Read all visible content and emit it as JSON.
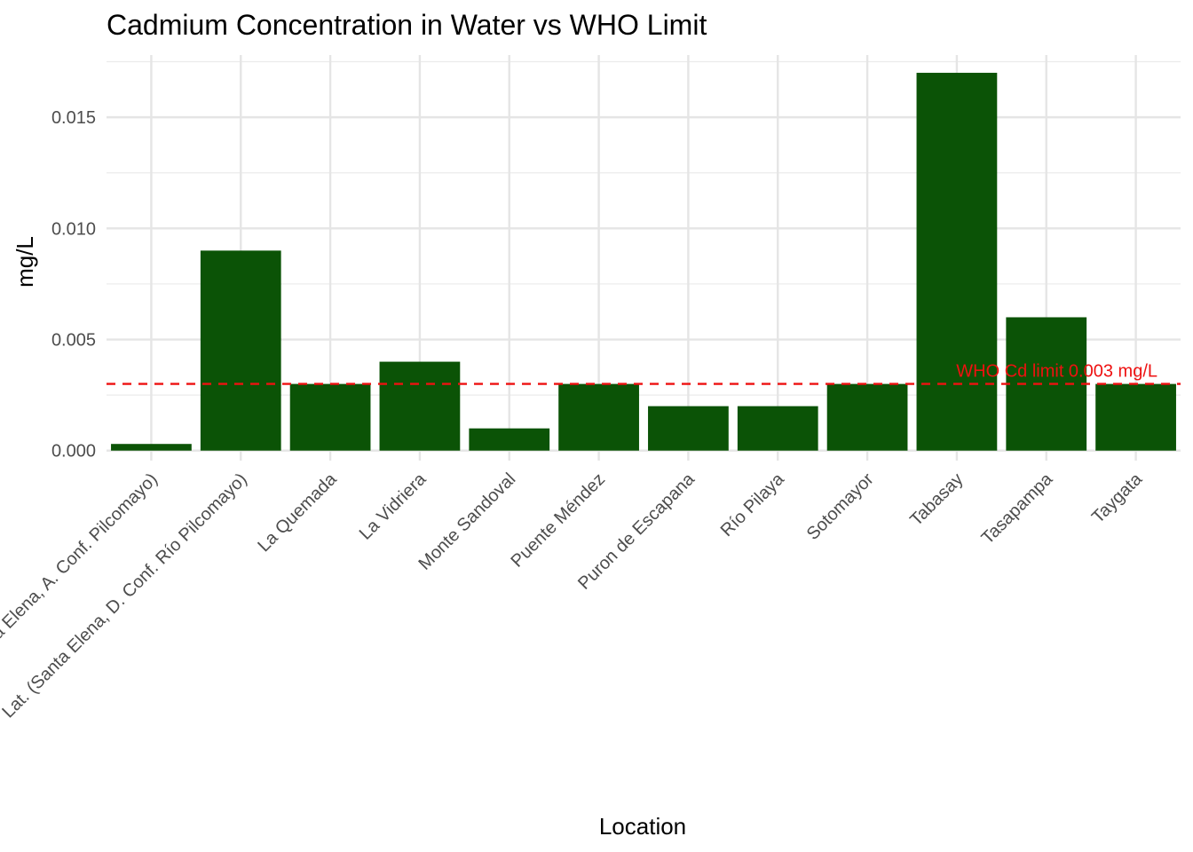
{
  "chart_data": {
    "type": "bar",
    "title": "Cadmium Concentration in Water vs WHO Limit",
    "xlabel": "Location",
    "ylabel": "mg/L",
    "categories": [
      "Lat. (Santa Elena, A. Conf. Pilcomayo)",
      "Lat. (Santa Elena, D. Conf. Río Pilcomayo)",
      "La Quemada",
      "La Vidriera",
      "Monte Sandoval",
      "Puente Méndez",
      "Puron de Escapana",
      "Río Pilaya",
      "Sotomayor",
      "Tabasay",
      "Tasapampa",
      "Taygata"
    ],
    "values": [
      0.0003,
      0.009,
      0.003,
      0.004,
      0.001,
      0.003,
      0.002,
      0.002,
      0.003,
      0.017,
      0.006,
      0.003
    ],
    "ylim": [
      -0.00045,
      0.0178
    ],
    "yticks": [
      0,
      0.005,
      0.01,
      0.015
    ],
    "ytick_labels": [
      "0.000",
      "0.005",
      "0.010",
      "0.015"
    ],
    "bar_color": "#0b5306",
    "grid": true,
    "legend": "none",
    "reference_line": {
      "value": 0.003,
      "label": "WHO Cd limit 0.003 mg/L",
      "color": "#ee1111",
      "style": "dashed"
    }
  }
}
